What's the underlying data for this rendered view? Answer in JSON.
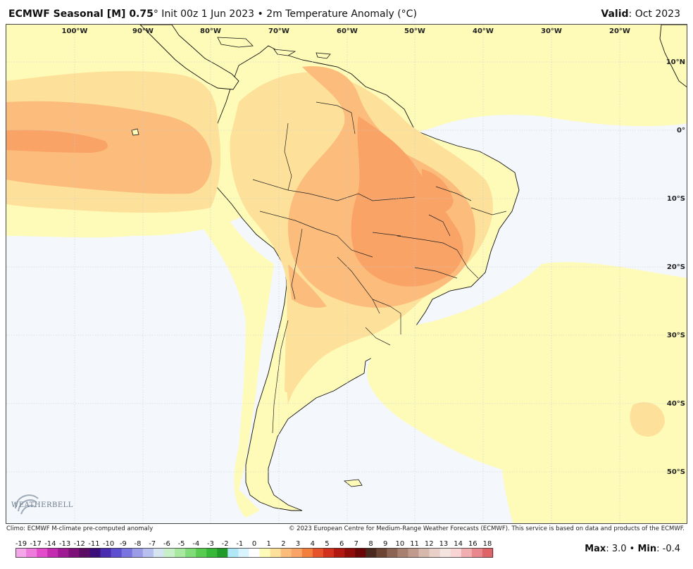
{
  "header": {
    "title_main": "ECMWF Seasonal [M] 0.75",
    "title_sub": "° Init 00z 1 Jun 2023 • 2m Temperature Anomaly (°C)",
    "valid_label": "Valid",
    "valid_value": ": Oct 2023"
  },
  "map": {
    "lon_labels": [
      "100°W",
      "90°W",
      "80°W",
      "70°W",
      "60°W",
      "50°W",
      "40°W",
      "30°W",
      "20°W"
    ],
    "lat_labels": [
      "10°N",
      "0°",
      "10°S",
      "20°S",
      "30°S",
      "40°S",
      "50°S"
    ],
    "colors": {
      "ocean": "#f4f7fb",
      "anom_0_1": "#fefbb8",
      "anom_1_2": "#fde19a",
      "anom_2_3": "#fcbc7c",
      "anom_3": "#f9a366"
    }
  },
  "logo": {
    "text": "WEATHERBELL",
    "icon": "swirl-logo-icon"
  },
  "footer": {
    "climo": "Climo: ECMWF M-climate pre-computed anomaly",
    "copyright": "© 2023 European Centre for Medium-Range Weather Forecasts (ECMWF). This service is based on data and products of the ECMWF."
  },
  "legend": {
    "labels": [
      "-19",
      "-17",
      "-14",
      "-13",
      "-12",
      "-11",
      "-10",
      "-9",
      "-8",
      "-7",
      "-6",
      "-5",
      "-4",
      "-3",
      "-2",
      "-1",
      "0",
      "1",
      "2",
      "3",
      "4",
      "5",
      "6",
      "7",
      "8",
      "9",
      "10",
      "11",
      "12",
      "13",
      "14",
      "16",
      "18"
    ],
    "colors": [
      "#f4a6e8",
      "#ee7bdc",
      "#e24ccb",
      "#c42bb0",
      "#a01a94",
      "#7d1079",
      "#5b0c63",
      "#3b0f7a",
      "#4a2cb0",
      "#5e4ed0",
      "#7a74e0",
      "#9a9ce8",
      "#b8c0f0",
      "#d4e4f0",
      "#c8f0c8",
      "#a8e8a0",
      "#80dc78",
      "#58cc50",
      "#38b838",
      "#209a28",
      "#b0e8f8",
      "#d8f4fc",
      "#ffffff",
      "#fefbb8",
      "#fde19a",
      "#fcbc7c",
      "#f9a366",
      "#f2803c",
      "#e6532a",
      "#d0301c",
      "#b01810",
      "#8e0c0a",
      "#6a0606",
      "#4a2a1e",
      "#6c4434",
      "#8c6454",
      "#a88070",
      "#c09a8c",
      "#d6b8ac",
      "#e8d0c8",
      "#f4e4e0",
      "#f8d4d4",
      "#f0aeb0",
      "#e8888c",
      "#de6468"
    ]
  },
  "stats": {
    "max_label": "Max",
    "max_value": ": 3.0 •",
    "min_label": "Min",
    "min_value": ": -0.4"
  }
}
